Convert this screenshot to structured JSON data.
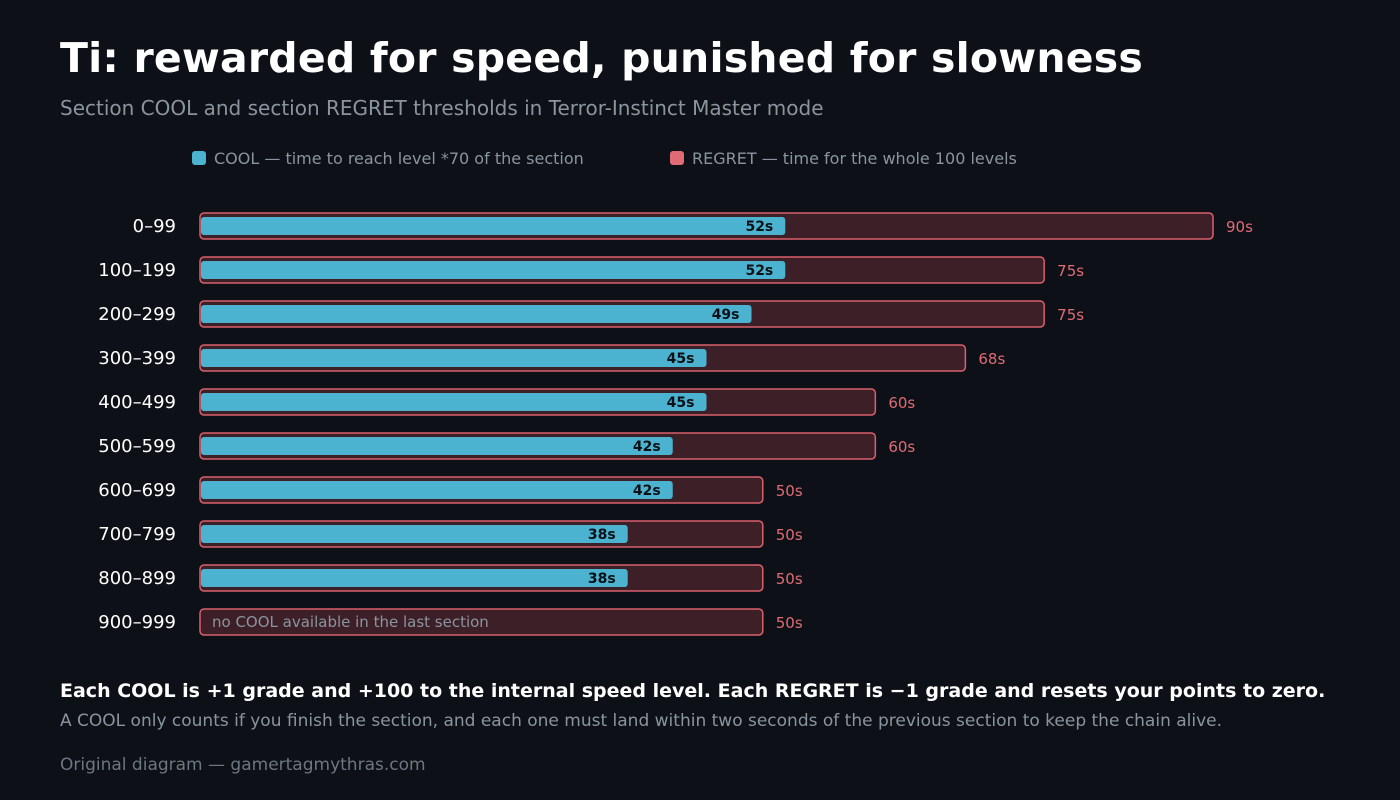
{
  "header": {
    "title": "Ti: rewarded for speed, punished for slowness",
    "subtitle": "Section COOL and section REGRET thresholds in Terror-Instinct Master mode"
  },
  "legend": {
    "cool_label": "COOL — time to reach level *70 of the section",
    "regret_label": "REGRET — time for the whole 100 levels"
  },
  "colors": {
    "cool": "#4bb3cf",
    "regret_fill": "#3d1f28",
    "regret_stroke": "#d9606c",
    "regret_text": "#e06b75",
    "category_text": "#ffffff",
    "cool_label_text": "#0d1117"
  },
  "chart_data": {
    "type": "bar",
    "orientation": "horizontal",
    "categories": [
      "0–99",
      "100–199",
      "200–299",
      "300–399",
      "400–499",
      "500–599",
      "600–699",
      "700–799",
      "800–899",
      "900–999"
    ],
    "series": [
      {
        "name": "COOL",
        "values": [
          52,
          52,
          49,
          45,
          45,
          42,
          42,
          38,
          38,
          null
        ]
      },
      {
        "name": "REGRET",
        "values": [
          90,
          75,
          75,
          68,
          60,
          60,
          50,
          50,
          50,
          50
        ]
      }
    ],
    "value_labels": {
      "COOL": [
        "52s",
        "52s",
        "49s",
        "45s",
        "45s",
        "42s",
        "42s",
        "38s",
        "38s",
        ""
      ],
      "REGRET": [
        "90s",
        "75s",
        "75s",
        "68s",
        "60s",
        "60s",
        "50s",
        "50s",
        "50s",
        "50s"
      ]
    },
    "xlim": [
      0,
      90
    ],
    "xlabel": "",
    "ylabel": "",
    "grid": false,
    "legend_position": "top",
    "annotations": [
      "no COOL available in the last section"
    ]
  },
  "notes": {
    "primary": "Each COOL is +1 grade and +100 to the internal speed level. Each REGRET is −1 grade and resets your points to zero.",
    "secondary": "A COOL only counts if you finish the section, and each one must land within two seconds of the previous section to keep the chain alive."
  },
  "credit": "Original diagram — gamertagmythras.com"
}
